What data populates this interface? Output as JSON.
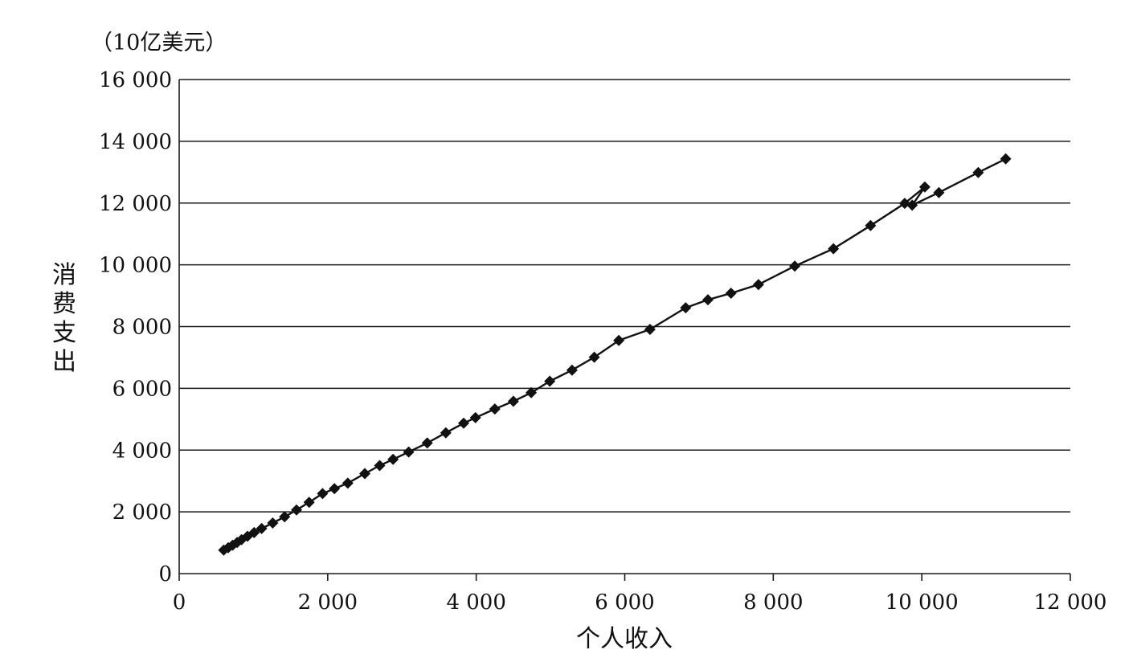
{
  "chart_data": {
    "type": "line",
    "unit": "（10亿美元）",
    "xlabel": "个人收入",
    "ylabel": "消费支出",
    "xlim": [
      0,
      12000
    ],
    "ylim": [
      0,
      16000
    ],
    "grid": true,
    "x_ticks": [
      0,
      2000,
      4000,
      6000,
      8000,
      10000,
      12000
    ],
    "x_tick_labels": [
      "0",
      "2 000",
      "4 000",
      "6 000",
      "8 000",
      "10 000",
      "12 000"
    ],
    "y_ticks": [
      0,
      2000,
      4000,
      6000,
      8000,
      10000,
      12000,
      14000,
      16000
    ],
    "y_tick_labels": [
      "0",
      "2 000",
      "4 000",
      "6 000",
      "8 000",
      "10 000",
      "12 000",
      "14 000",
      "16 000"
    ],
    "series": [
      {
        "color": "#111111",
        "marker": "diamond",
        "points": [
          [
            600,
            760
          ],
          [
            660,
            840
          ],
          [
            720,
            920
          ],
          [
            780,
            1010
          ],
          [
            840,
            1100
          ],
          [
            920,
            1210
          ],
          [
            1010,
            1330
          ],
          [
            1110,
            1460
          ],
          [
            1260,
            1640
          ],
          [
            1420,
            1840
          ],
          [
            1580,
            2060
          ],
          [
            1750,
            2310
          ],
          [
            1930,
            2590
          ],
          [
            2090,
            2750
          ],
          [
            2270,
            2930
          ],
          [
            2500,
            3240
          ],
          [
            2700,
            3500
          ],
          [
            2880,
            3700
          ],
          [
            3090,
            3940
          ],
          [
            3340,
            4230
          ],
          [
            3590,
            4560
          ],
          [
            3830,
            4870
          ],
          [
            3990,
            5050
          ],
          [
            4250,
            5330
          ],
          [
            4500,
            5580
          ],
          [
            4740,
            5860
          ],
          [
            4990,
            6230
          ],
          [
            5290,
            6590
          ],
          [
            5590,
            7010
          ],
          [
            5920,
            7550
          ],
          [
            6340,
            7910
          ],
          [
            6820,
            8610
          ],
          [
            7120,
            8870
          ],
          [
            7430,
            9080
          ],
          [
            7800,
            9360
          ],
          [
            8290,
            9960
          ],
          [
            8810,
            10520
          ],
          [
            9310,
            11270
          ],
          [
            9770,
            11990
          ],
          [
            10040,
            12520
          ],
          [
            9870,
            11930
          ],
          [
            10230,
            12340
          ],
          [
            10760,
            12990
          ],
          [
            11130,
            13430
          ]
        ]
      }
    ]
  }
}
